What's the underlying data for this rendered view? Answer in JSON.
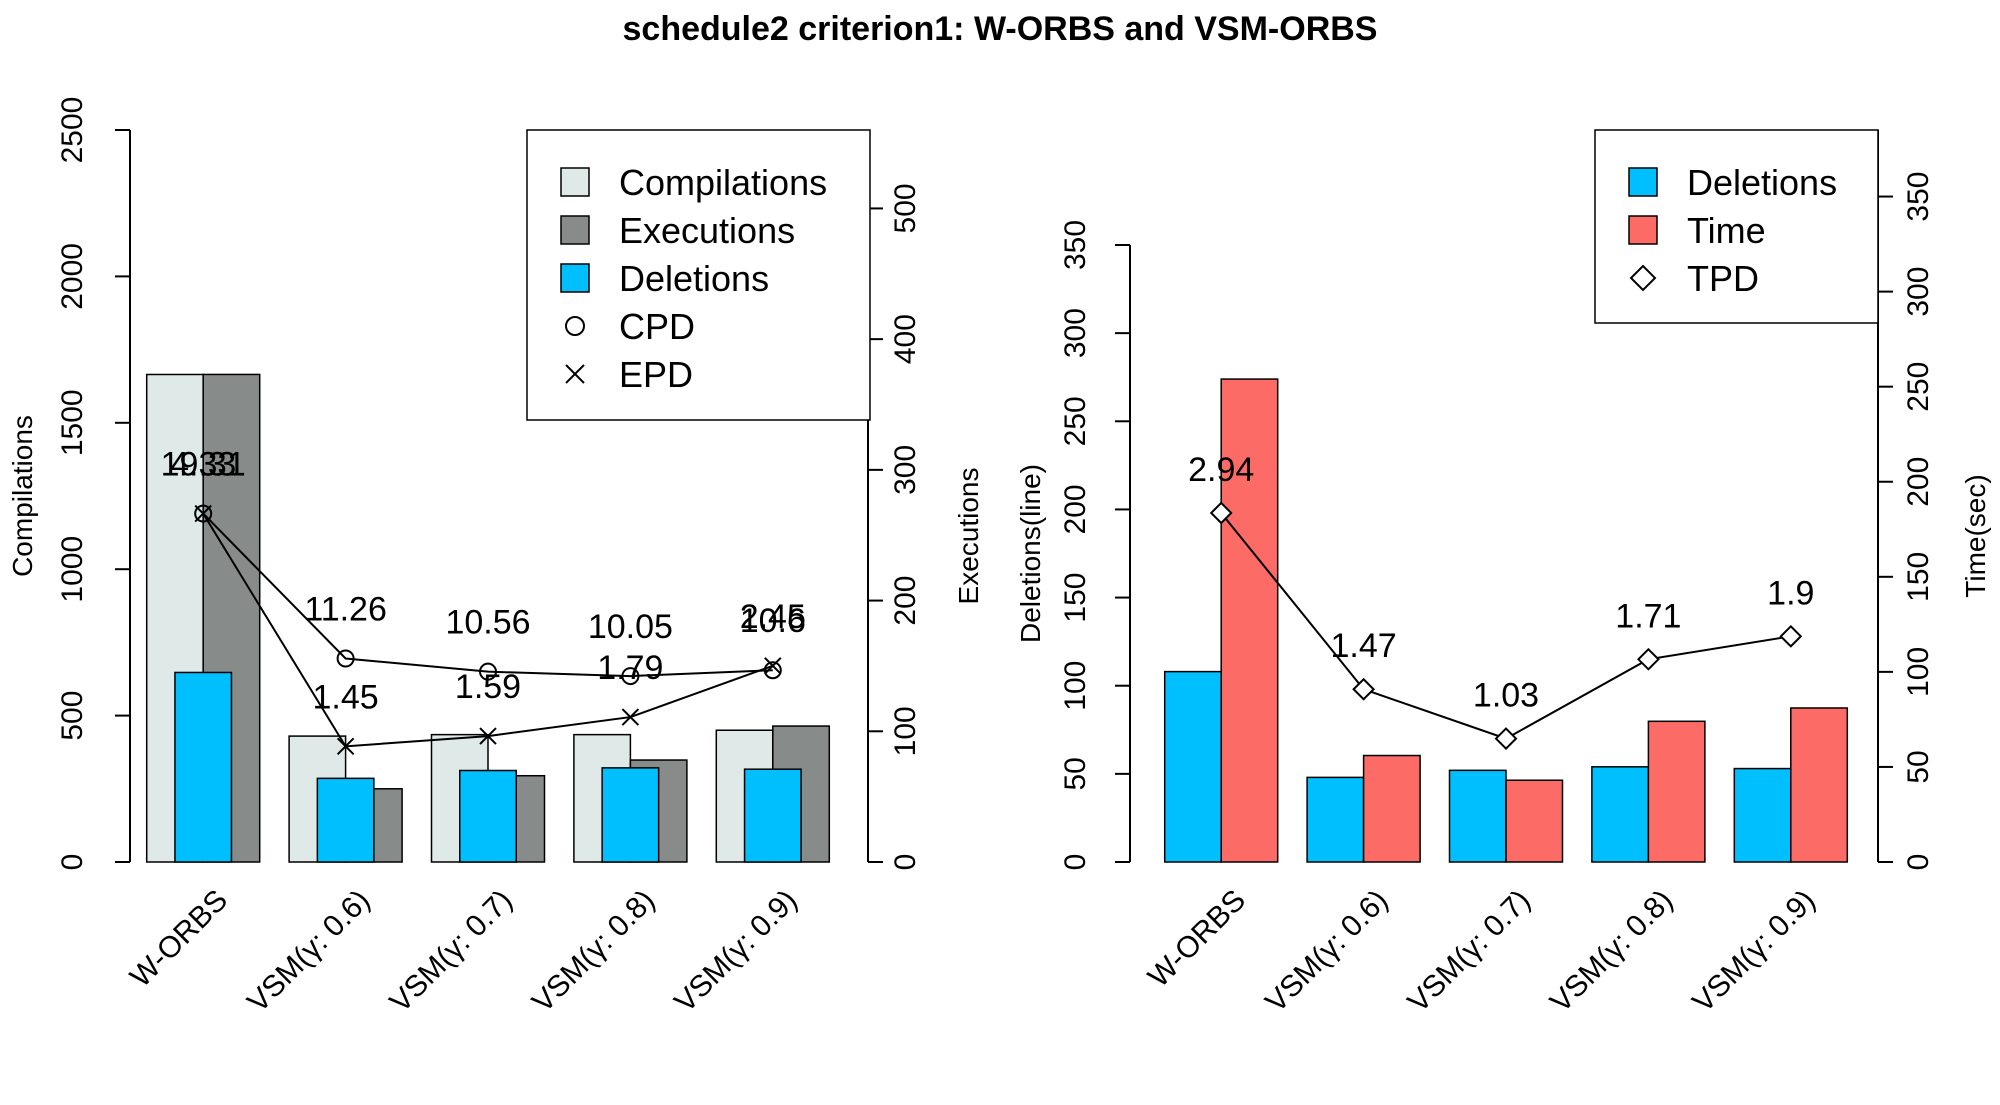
{
  "title": "schedule2 criterion1: W-ORBS and VSM-ORBS",
  "colors": {
    "compilations": "#dfe9e8",
    "executions": "#878b8a",
    "deletions": "#00bfff",
    "time": "#fc6b66",
    "line": "#000000"
  },
  "chart_data": [
    {
      "type": "bar",
      "categories": [
        "W-ORBS",
        "VSM(γ: 0.6)",
        "VSM(γ: 0.7)",
        "VSM(γ: 0.8)",
        "VSM(γ: 0.9)"
      ],
      "left_axis": {
        "label": "Compilations",
        "ylim": [
          0,
          2500
        ],
        "ticks": [
          0,
          500,
          1000,
          1500,
          2000,
          2500
        ]
      },
      "right_axis": {
        "label": "Executions",
        "ylim": [
          0,
          560
        ],
        "ticks": [
          0,
          100,
          200,
          300,
          400,
          500
        ]
      },
      "series": [
        {
          "name": "Compilations",
          "axis": "left",
          "values": [
            1665,
            430,
            435,
            435,
            450
          ]
        },
        {
          "name": "Executions",
          "axis": "right",
          "values": [
            373,
            56,
            66,
            78,
            104
          ]
        },
        {
          "name": "Deletions",
          "axis": "right",
          "values": [
            145,
            64,
            70,
            72,
            71
          ]
        }
      ],
      "lines": [
        {
          "name": "CPD",
          "marker": "circle",
          "axis": "left",
          "values": [
            1190,
            695,
            650,
            635,
            655
          ],
          "labels": [
            "19.31",
            "11.26",
            "10.56",
            "10.05",
            "10.6"
          ]
        },
        {
          "name": "EPD",
          "marker": "cross",
          "axis": "left",
          "values": [
            1190,
            395,
            430,
            495,
            670
          ],
          "labels": [
            "4.33",
            "1.45",
            "1.59",
            "1.79",
            "2.45"
          ]
        }
      ],
      "legend": {
        "position": "top-right",
        "entries": [
          "Compilations",
          "Executions",
          "Deletions",
          "CPD",
          "EPD"
        ]
      }
    },
    {
      "type": "bar",
      "categories": [
        "W-ORBS",
        "VSM(γ: 0.6)",
        "VSM(γ: 0.7)",
        "VSM(γ: 0.8)",
        "VSM(γ: 0.9)"
      ],
      "left_axis": {
        "label": "Deletions(line)",
        "ylim": [
          0,
          350
        ],
        "ticks": [
          0,
          50,
          100,
          150,
          200,
          250,
          300,
          350
        ]
      },
      "right_axis": {
        "label": "Time(sec)",
        "ylim": [
          0,
          385
        ],
        "ticks": [
          0,
          50,
          100,
          150,
          200,
          250,
          300,
          350
        ]
      },
      "series": [
        {
          "name": "Deletions",
          "axis": "left",
          "values": [
            108,
            48,
            52,
            54,
            53
          ]
        },
        {
          "name": "Time",
          "axis": "right",
          "values": [
            254,
            56,
            43,
            74,
            81
          ]
        }
      ],
      "lines": [
        {
          "name": "TPD",
          "marker": "diamond",
          "axis": "left",
          "values": [
            198,
            98,
            70,
            115,
            128
          ],
          "labels": [
            "2.94",
            "1.47",
            "1.03",
            "1.71",
            "1.9"
          ]
        }
      ],
      "legend": {
        "position": "top-right",
        "entries": [
          "Deletions",
          "Time",
          "TPD"
        ]
      }
    }
  ]
}
